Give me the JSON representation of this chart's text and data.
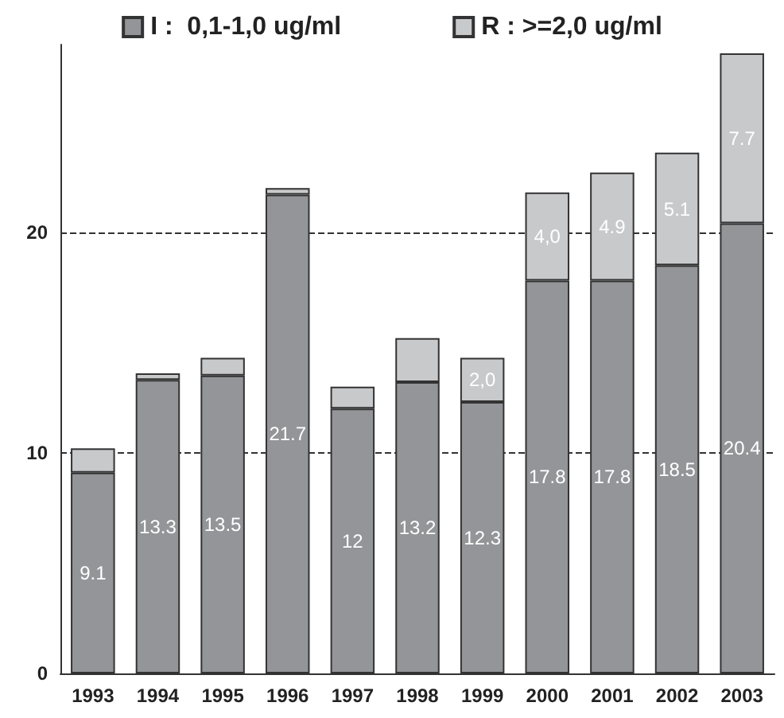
{
  "chart_data": {
    "type": "bar",
    "stacked": true,
    "categories": [
      "1993",
      "1994",
      "1995",
      "1996",
      "1997",
      "1998",
      "1999",
      "2000",
      "2001",
      "2002",
      "2003"
    ],
    "series": [
      {
        "name": "I :  0,1-1,0 ug/ml",
        "color": "#939598",
        "values": [
          9.1,
          13.3,
          13.5,
          21.7,
          12,
          13.2,
          12.3,
          17.8,
          17.8,
          18.5,
          20.4
        ],
        "value_labels": [
          "9.1",
          "13.3",
          "13.5",
          "21.7",
          "12",
          "13.2",
          "12.3",
          "17.8",
          "17.8",
          "18.5",
          "20.4"
        ]
      },
      {
        "name": "R : >=2,0 ug/ml",
        "color": "#c8c9cb",
        "values": [
          1.1,
          0.3,
          0.8,
          0.3,
          1.0,
          2.0,
          2.0,
          4.0,
          4.9,
          5.1,
          7.7
        ],
        "value_labels": [
          null,
          null,
          null,
          null,
          null,
          null,
          "2,0",
          "4,0",
          "4.9",
          "5.1",
          "7.7"
        ]
      }
    ],
    "ylim": [
      0,
      28.5
    ],
    "yticks": [
      0,
      10,
      20
    ],
    "grid": "y",
    "legend": "top"
  }
}
